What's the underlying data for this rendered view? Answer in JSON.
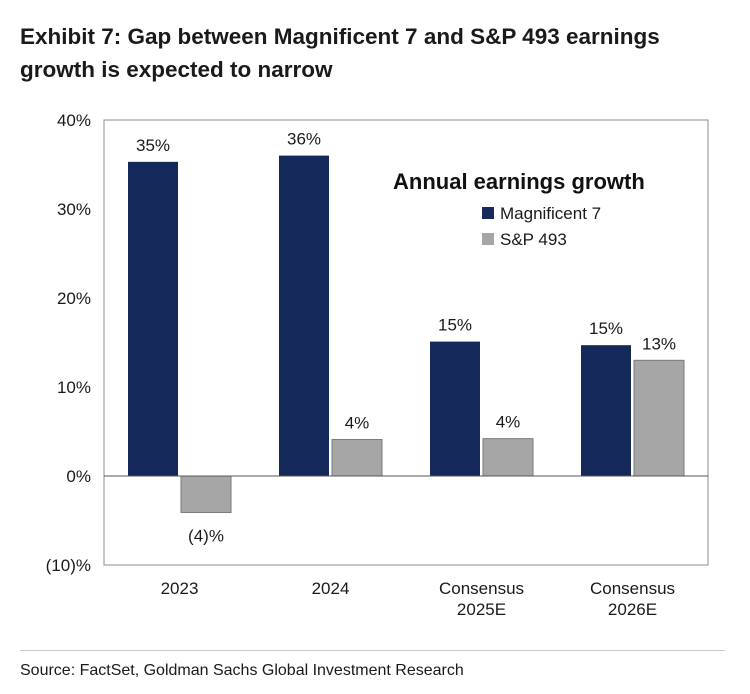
{
  "title": "Exhibit 7: Gap between Magnificent 7 and S&P 493 earnings growth is expected to narrow",
  "source": "Source: FactSet, Goldman Sachs Global Investment Research",
  "chart_data": {
    "type": "bar",
    "legend_title": "Annual earnings growth",
    "categories": [
      "2023",
      "2024",
      "Consensus 2025E",
      "Consensus 2026E"
    ],
    "category_lines": [
      [
        "2023"
      ],
      [
        "2024"
      ],
      [
        "Consensus",
        "2025E"
      ],
      [
        "Consensus",
        "2026E"
      ]
    ],
    "series": [
      {
        "name": "Magnificent 7",
        "color": "#14285a",
        "values": [
          35.3,
          36.0,
          15.1,
          14.7
        ],
        "labels": [
          "35%",
          "36%",
          "15%",
          "15%"
        ]
      },
      {
        "name": "S&P 493",
        "color": "#a6a6a6",
        "values": [
          -4.1,
          4.1,
          4.2,
          13.0
        ],
        "labels": [
          "(4)%",
          "4%",
          "4%",
          "13%"
        ]
      }
    ],
    "ylim": [
      -10,
      40
    ],
    "yticks": [
      -10,
      0,
      10,
      20,
      30,
      40
    ],
    "ytick_labels": [
      "(10)%",
      "0%",
      "10%",
      "20%",
      "30%",
      "40%"
    ],
    "xlabel": "",
    "ylabel": "",
    "legend_position": "top-right"
  }
}
